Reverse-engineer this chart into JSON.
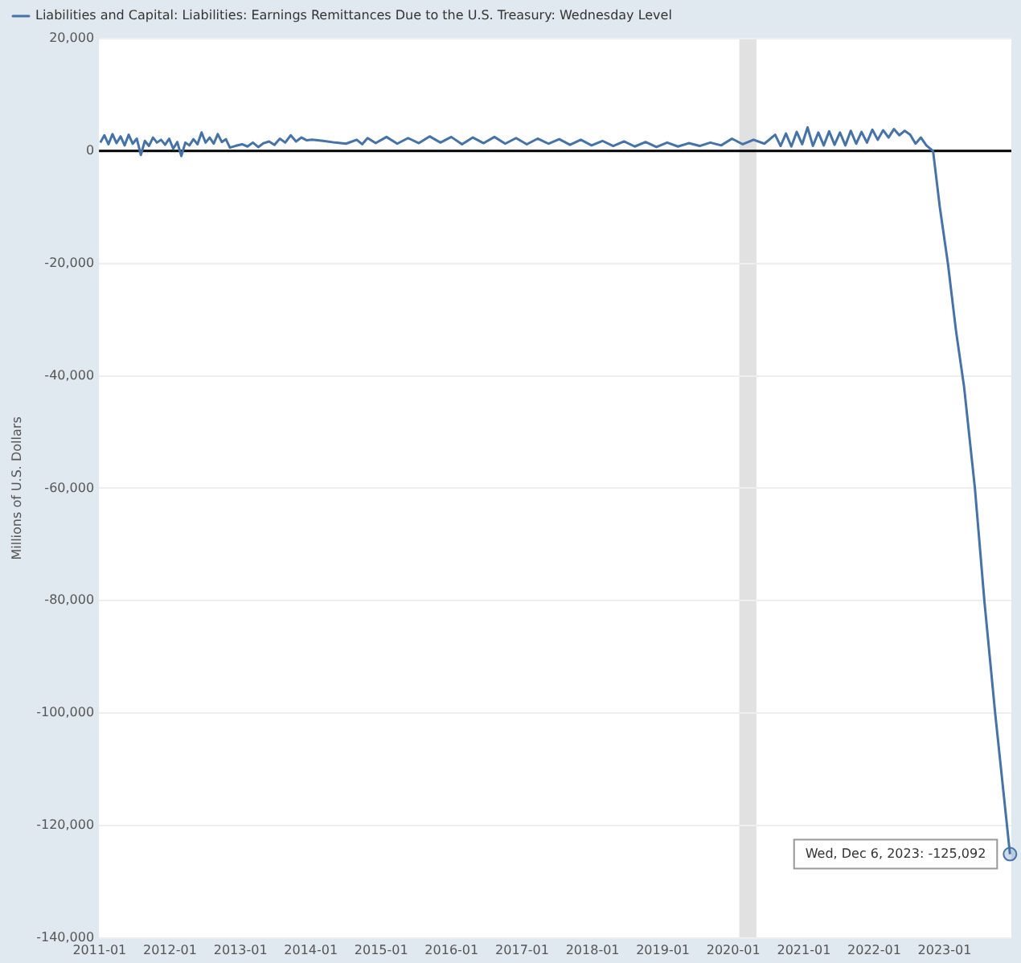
{
  "chart_data": {
    "type": "line",
    "ylabel": "Millions of U.S. Dollars",
    "legend": "top left",
    "grid": "y",
    "marker": "none",
    "line_style": "solid",
    "xlim": [
      "2010-12-29",
      "2023-12-13"
    ],
    "xticks": [
      "2011-01",
      "2012-01",
      "2013-01",
      "2014-01",
      "2015-01",
      "2016-01",
      "2017-01",
      "2018-01",
      "2019-01",
      "2020-01",
      "2021-01",
      "2022-01",
      "2023-01"
    ],
    "ylim": [
      -140000,
      20000
    ],
    "yticks": [
      {
        "value": -140000,
        "label": "-140,000"
      },
      {
        "value": -120000,
        "label": "-120,000"
      },
      {
        "value": -100000,
        "label": "-100,000"
      },
      {
        "value": -80000,
        "label": "-80,000"
      },
      {
        "value": -60000,
        "label": "-60,000"
      },
      {
        "value": -40000,
        "label": "-40,000"
      },
      {
        "value": -20000,
        "label": "-20,000"
      },
      0,
      {
        "value": 20000,
        "label": "20,000"
      }
    ],
    "ref_lines": [
      {
        "axis": "y",
        "value": 0,
        "color": "#000000"
      }
    ],
    "bands": [
      {
        "axis": "x",
        "from": "2020-02-01",
        "to": "2020-04-30",
        "color": "#e1e1e1"
      }
    ],
    "annotations": [
      {
        "text": "Wed, Dec 6, 2023: -125,092",
        "x": "2023-12-06",
        "y": -125092
      }
    ],
    "series": [
      {
        "name": "Liabilities and Capital: Liabilities: Earnings Remittances Due to the U.S. Treasury: Wednesday Level",
        "color": "#4572a7",
        "x": [
          "2011-01-05",
          "2011-01-26",
          "2011-02-16",
          "2011-03-09",
          "2011-03-30",
          "2011-04-20",
          "2011-05-11",
          "2011-06-01",
          "2011-06-22",
          "2011-07-13",
          "2011-08-03",
          "2011-08-24",
          "2011-09-14",
          "2011-10-05",
          "2011-10-26",
          "2011-11-16",
          "2011-12-07",
          "2011-12-28",
          "2012-01-18",
          "2012-02-08",
          "2012-02-29",
          "2012-03-21",
          "2012-04-11",
          "2012-05-02",
          "2012-05-23",
          "2012-06-13",
          "2012-07-04",
          "2012-07-25",
          "2012-08-15",
          "2012-09-05",
          "2012-09-26",
          "2012-10-17",
          "2012-11-07",
          "2012-12-05",
          "2013-01-09",
          "2013-02-06",
          "2013-03-06",
          "2013-04-03",
          "2013-05-01",
          "2013-05-29",
          "2013-06-26",
          "2013-07-24",
          "2013-08-21",
          "2013-09-18",
          "2013-10-16",
          "2013-11-13",
          "2013-12-11",
          "2014-01-08",
          "2014-03-05",
          "2014-05-07",
          "2014-07-02",
          "2014-08-27",
          "2014-09-24",
          "2014-10-22",
          "2014-12-03",
          "2015-01-28",
          "2015-03-25",
          "2015-05-20",
          "2015-07-15",
          "2015-09-09",
          "2015-11-04",
          "2015-12-30",
          "2016-02-24",
          "2016-04-20",
          "2016-06-15",
          "2016-08-10",
          "2016-10-05",
          "2016-11-30",
          "2017-01-25",
          "2017-03-22",
          "2017-05-17",
          "2017-07-12",
          "2017-09-06",
          "2017-11-01",
          "2017-12-27",
          "2018-02-21",
          "2018-04-18",
          "2018-06-13",
          "2018-08-08",
          "2018-10-03",
          "2018-11-28",
          "2019-01-23",
          "2019-03-20",
          "2019-05-15",
          "2019-07-10",
          "2019-09-04",
          "2019-10-30",
          "2019-12-25",
          "2020-02-19",
          "2020-04-15",
          "2020-06-10",
          "2020-08-05",
          "2020-09-02",
          "2020-09-30",
          "2020-10-28",
          "2020-11-25",
          "2020-12-23",
          "2021-01-20",
          "2021-02-17",
          "2021-03-17",
          "2021-04-14",
          "2021-05-12",
          "2021-06-09",
          "2021-07-07",
          "2021-08-04",
          "2021-09-01",
          "2021-09-29",
          "2021-10-27",
          "2021-11-24",
          "2021-12-22",
          "2022-01-19",
          "2022-02-16",
          "2022-03-16",
          "2022-04-13",
          "2022-05-11",
          "2022-06-08",
          "2022-07-06",
          "2022-08-03",
          "2022-08-31",
          "2022-09-28",
          "2022-11-02",
          "2022-12-07",
          "2023-01-18",
          "2023-03-01",
          "2023-04-12",
          "2023-06-07",
          "2023-07-26",
          "2023-09-20",
          "2023-12-06"
        ],
        "values": [
          1500,
          2800,
          1200,
          3000,
          1400,
          2600,
          1000,
          2900,
          1300,
          2200,
          -700,
          1800,
          900,
          2400,
          1500,
          2000,
          1100,
          2200,
          400,
          1600,
          -900,
          1500,
          1000,
          2100,
          1200,
          3300,
          1500,
          2400,
          1300,
          3000,
          1600,
          2100,
          600,
          900,
          1200,
          800,
          1500,
          700,
          1400,
          1700,
          1100,
          2200,
          1500,
          2800,
          1700,
          2400,
          1900,
          2000,
          1800,
          1500,
          1300,
          2000,
          1200,
          2300,
          1400,
          2500,
          1300,
          2300,
          1400,
          2600,
          1500,
          2500,
          1200,
          2400,
          1400,
          2500,
          1300,
          2300,
          1200,
          2200,
          1300,
          2100,
          1100,
          2000,
          1000,
          1800,
          900,
          1700,
          800,
          1600,
          700,
          1500,
          800,
          1400,
          900,
          1500,
          1000,
          2200,
          1200,
          2000,
          1300,
          2900,
          900,
          3100,
          800,
          3400,
          1200,
          4200,
          900,
          3300,
          1000,
          3500,
          1100,
          3300,
          1000,
          3600,
          1300,
          3400,
          1500,
          3800,
          2000,
          3700,
          2400,
          3900,
          2800,
          3600,
          2900,
          1300,
          2400,
          1000,
          0,
          -10000,
          -20000,
          -32000,
          -42000,
          -60000,
          -80000,
          -100000,
          -125092
        ]
      }
    ]
  }
}
